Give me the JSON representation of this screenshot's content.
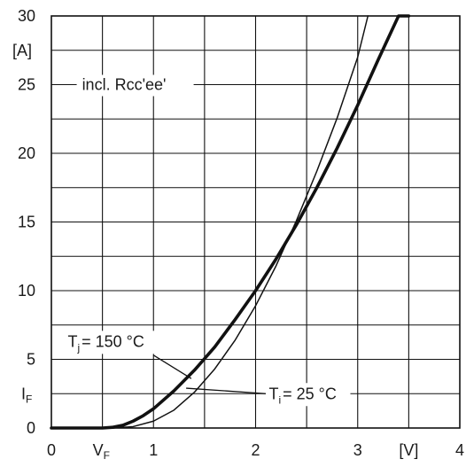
{
  "chart_data": {
    "type": "line",
    "title": "",
    "xlabel": "V_F",
    "ylabel": "I_F",
    "x_unit": "[V]",
    "y_unit": "[A]",
    "xlim": [
      0,
      4
    ],
    "ylim": [
      0,
      30
    ],
    "grid": true,
    "x_ticks": [
      0,
      1,
      2,
      3,
      4
    ],
    "y_ticks": [
      0,
      5,
      10,
      15,
      20,
      25,
      30
    ],
    "x_tick_labels": [
      "0",
      "1",
      "2",
      "3",
      "4"
    ],
    "y_tick_labels": [
      "0",
      "5",
      "10",
      "15",
      "20",
      "25",
      "30"
    ],
    "x_minor_step": 0.5,
    "y_minor_step": 2.5,
    "annotation": "incl. Rcc'ee'",
    "series": [
      {
        "name": "Tj = 150 °C",
        "label_main": "T",
        "label_sub": "j",
        "label_rest": "= 150 °C",
        "color": "#111111",
        "weight": "bold",
        "x": [
          0,
          0.5,
          0.6,
          0.7,
          0.8,
          0.9,
          1.0,
          1.2,
          1.4,
          1.6,
          1.8,
          2.0,
          2.2,
          2.4,
          2.6,
          2.8,
          3.0,
          3.2,
          3.4,
          3.5
        ],
        "y": [
          0,
          0,
          0.05,
          0.2,
          0.5,
          0.9,
          1.4,
          2.7,
          4.2,
          5.9,
          7.9,
          10.0,
          12.3,
          14.8,
          17.5,
          20.4,
          23.5,
          26.8,
          30.0,
          30.0
        ]
      },
      {
        "name": "Ti = 25 °C",
        "label_main": "T",
        "label_sub": "i",
        "label_rest": "= 25 °C",
        "color": "#111111",
        "weight": "thin",
        "x": [
          0,
          0.6,
          0.8,
          1.0,
          1.2,
          1.4,
          1.6,
          1.8,
          2.0,
          2.2,
          2.4,
          2.6,
          2.8,
          3.0,
          3.1
        ],
        "y": [
          0,
          0,
          0.1,
          0.5,
          1.3,
          2.6,
          4.3,
          6.4,
          8.9,
          11.8,
          15.1,
          18.7,
          22.6,
          27.0,
          30.0
        ]
      }
    ]
  }
}
